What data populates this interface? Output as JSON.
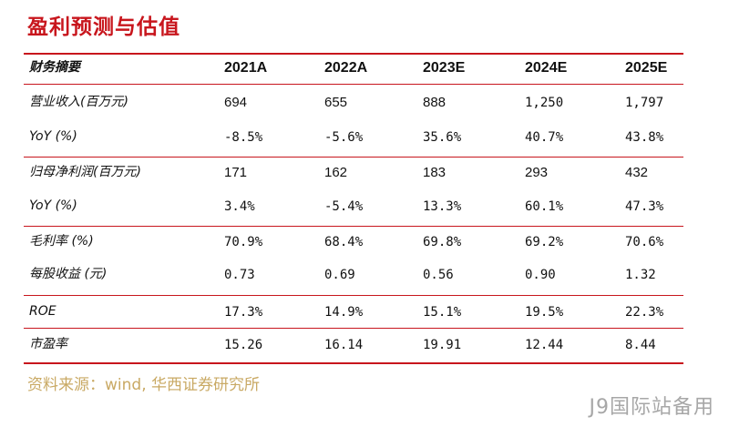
{
  "title": "盈利预测与估值",
  "header": {
    "label": "财务摘要",
    "years": [
      "2021A",
      "2022A",
      "2023E",
      "2024E",
      "2025E"
    ]
  },
  "rows": [
    {
      "label": "营业收入(百万元)",
      "values": [
        "694",
        "655",
        "888",
        "1,250",
        "1,797"
      ]
    },
    {
      "label": "YoY (%)",
      "values": [
        "-8.5%",
        "-5.6%",
        "35.6%",
        "40.7%",
        "43.8%"
      ]
    },
    {
      "label": "归母净利润(百万元)",
      "values": [
        "171",
        "162",
        "183",
        "293",
        "432"
      ]
    },
    {
      "label": "YoY (%)",
      "values": [
        "3.4%",
        "-5.4%",
        "13.3%",
        "60.1%",
        "47.3%"
      ]
    },
    {
      "label": "毛利率 (%)",
      "values": [
        "70.9%",
        "68.4%",
        "69.8%",
        "69.2%",
        "70.6%"
      ]
    },
    {
      "label": "每股收益 (元)",
      "values": [
        "0.73",
        "0.69",
        "0.56",
        "0.90",
        "1.32"
      ]
    },
    {
      "label": "ROE",
      "values": [
        "17.3%",
        "14.9%",
        "15.1%",
        "19.5%",
        "22.3%"
      ]
    },
    {
      "label": "市盈率",
      "values": [
        "15.26",
        "16.14",
        "19.91",
        "12.44",
        "8.44"
      ]
    }
  ],
  "source": "资料来源：wind, 华西证券研究所",
  "watermark": "J9国际站备用",
  "colors": {
    "accent": "#c8161d",
    "source_text": "#c9a964",
    "watermark": "#a7a7a7"
  }
}
